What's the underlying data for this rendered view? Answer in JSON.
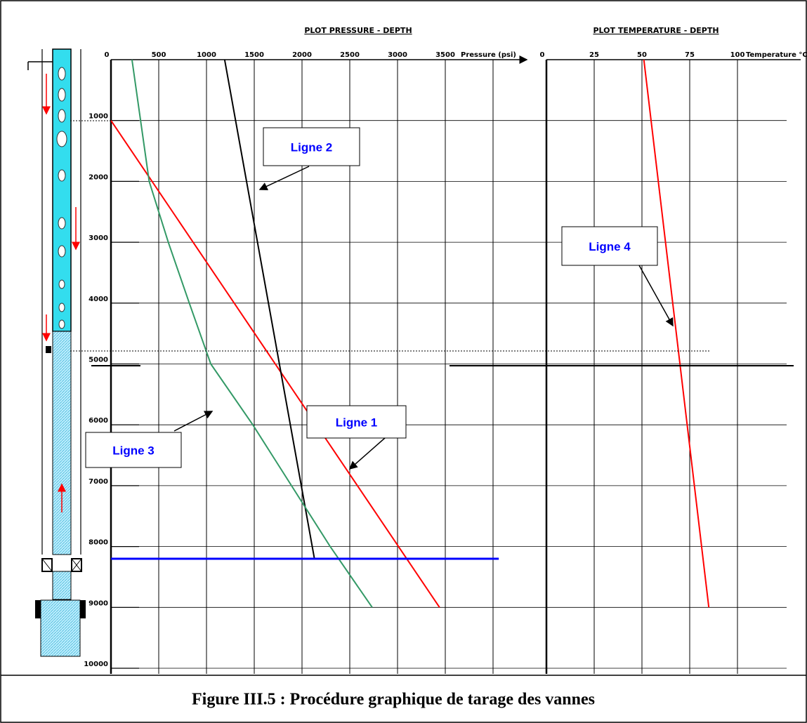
{
  "chart_data": [
    {
      "type": "line",
      "title": "PLOT PRESSURE - DEPTH",
      "x_label": "Pressure (psi)",
      "xlim": [
        0,
        4000
      ],
      "xticks": [
        0,
        500,
        1000,
        1500,
        2000,
        2500,
        3000,
        3500
      ],
      "ylim": [
        0,
        10000
      ],
      "y_inverted": true,
      "yticks": [
        1000,
        2000,
        3000,
        4000,
        5000,
        6000,
        7000,
        8000,
        9000,
        10000
      ],
      "grid": true,
      "series": [
        {
          "name": "Ligne 1",
          "color": "#ff0000",
          "x": [
            0,
            3440
          ],
          "values": [
            1000,
            9000
          ]
        },
        {
          "name": "Ligne 2",
          "color": "#000000",
          "x": [
            1190,
            2130
          ],
          "values": [
            0,
            8200
          ]
        },
        {
          "name": "Ligne 3",
          "color": "#339966",
          "x": [
            220,
            310,
            400,
            600,
            820,
            1000,
            1045,
            1485,
            1890,
            2295,
            2735
          ],
          "values": [
            0,
            1000,
            2000,
            3000,
            4000,
            4800,
            5000,
            6000,
            7000,
            8000,
            9000
          ]
        },
        {
          "color": "#0000ff",
          "x": [
            0,
            4060
          ],
          "values": [
            8200,
            8200
          ]
        }
      ]
    },
    {
      "type": "line",
      "title": "PLOT TEMPERATURE - DEPTH",
      "x_label": "Temperature °C",
      "xlim": [
        0,
        100
      ],
      "xticks": [
        0,
        25,
        50,
        75,
        100
      ],
      "ylim": [
        0,
        10000
      ],
      "y_inverted": true,
      "grid": true,
      "series": [
        {
          "name": "Ligne  4",
          "color": "#ff0000",
          "x": [
            51,
            85
          ],
          "values": [
            0,
            9000
          ]
        }
      ]
    }
  ],
  "figure_caption": "Figure III.5 : Procédure graphique de tarage des vannes"
}
